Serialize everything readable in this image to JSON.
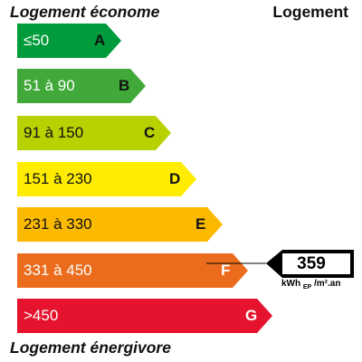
{
  "header": {
    "left_label": "Logement économe",
    "right_label": "Logement"
  },
  "footer_label": "Logement énergivore",
  "classes": [
    {
      "range": "≤50",
      "letter": "A",
      "color": "#009b3a"
    },
    {
      "range": "51 à 90",
      "letter": "B",
      "color": "#40a93a"
    },
    {
      "range": "91 à 150",
      "letter": "C",
      "color": "#b8d100"
    },
    {
      "range": "151 à 230",
      "letter": "D",
      "color": "#ffec00"
    },
    {
      "range": "231 à 330",
      "letter": "E",
      "color": "#fbb900"
    },
    {
      "range": "331 à 450",
      "letter": "F",
      "color": "#eb6c1c"
    },
    {
      "range": ">450",
      "letter": "G",
      "color": "#e5132d"
    }
  ],
  "indicator": {
    "value": "359",
    "unit_main": "kWh",
    "unit_sub": "EP",
    "unit_rest": "/m².an",
    "class_letter": "F"
  }
}
